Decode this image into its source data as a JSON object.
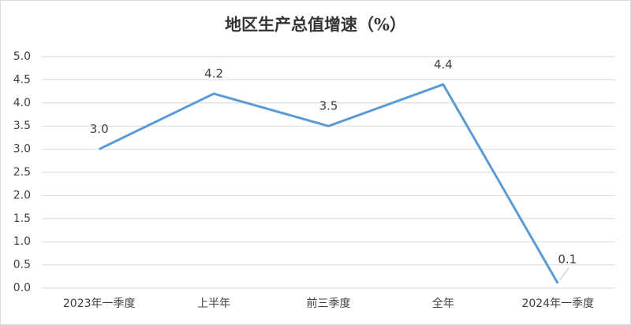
{
  "chart_data": {
    "type": "line",
    "title": "地区生产总值增速（%）",
    "categories": [
      "2023年一季度",
      "上半年",
      "前三季度",
      "全年",
      "2024年一季度"
    ],
    "series": [
      {
        "color": "#5b9bd5",
        "values": [
          3.0,
          4.2,
          3.5,
          4.4,
          0.1
        ],
        "value_labels": [
          "3.0",
          "4.2",
          "3.5",
          "4.4",
          "0.1"
        ]
      }
    ],
    "ylim": [
      0,
      5
    ],
    "yticks": [
      {
        "value": 0,
        "label": "0.0"
      },
      {
        "value": 0.5,
        "label": "0.5"
      },
      {
        "value": 1,
        "label": "1.0"
      },
      {
        "value": 1.5,
        "label": "1.5"
      },
      {
        "value": 2,
        "label": "2.0"
      },
      {
        "value": 2.5,
        "label": "2.5"
      },
      {
        "value": 3,
        "label": "3.0"
      },
      {
        "value": 3.5,
        "label": "3.5"
      },
      {
        "value": 4,
        "label": "4.0"
      },
      {
        "value": 4.5,
        "label": "4.5"
      },
      {
        "value": 5,
        "label": "5.0"
      }
    ],
    "grid": true
  }
}
